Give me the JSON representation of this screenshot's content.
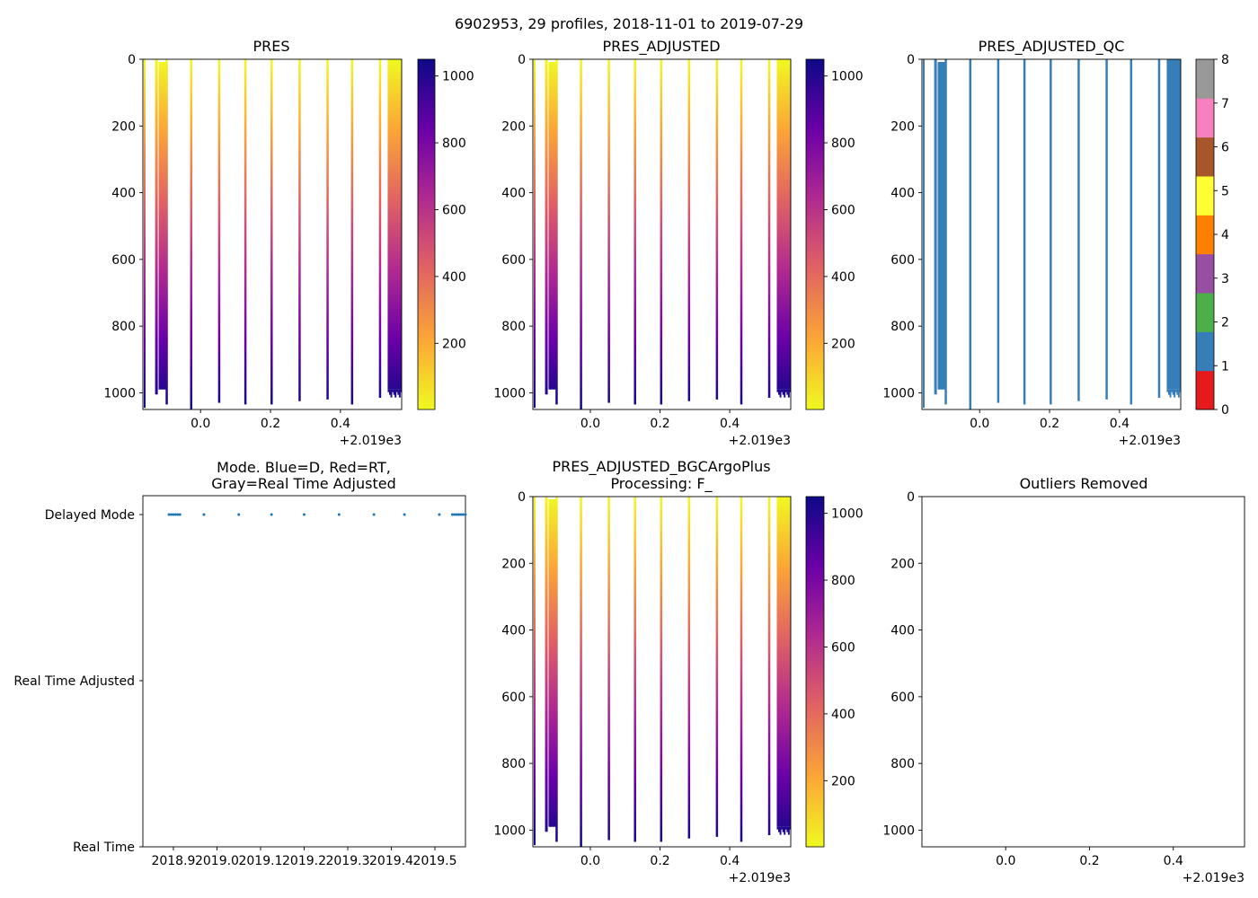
{
  "suptitle": "6902953, 29 profiles, 2018-11-01 to 2019-07-29",
  "chart_data": [
    {
      "type": "heatmap",
      "title": "PRES",
      "ylim": [
        1050,
        0
      ],
      "yticks": [
        "0",
        "200",
        "400",
        "600",
        "800",
        "1000"
      ],
      "xticks": [
        "0.0",
        "0.2",
        "0.4"
      ],
      "x_offset": "+2.019e3",
      "colormap": "plasma_r",
      "colorbar_ticks": [
        "200",
        "400",
        "600",
        "800",
        "1000"
      ],
      "profiles_x": [
        -0.13,
        -0.12,
        -0.115,
        -0.11,
        -0.105,
        -0.1,
        -0.03,
        0.05,
        0.125,
        0.2,
        0.28,
        0.36,
        0.43,
        0.51
      ],
      "profiles_max_pres": [
        1005,
        990,
        990,
        990,
        990,
        1035,
        1050,
        1030,
        1035,
        1035,
        1025,
        1020,
        1035,
        1015
      ]
    },
    {
      "type": "heatmap",
      "title": "PRES_ADJUSTED",
      "ylim": [
        1050,
        0
      ],
      "yticks": [
        "0",
        "200",
        "400",
        "600",
        "800",
        "1000"
      ],
      "xticks": [
        "0.0",
        "0.2",
        "0.4"
      ],
      "x_offset": "+2.019e3",
      "colormap": "plasma_r",
      "colorbar_ticks": [
        "200",
        "400",
        "600",
        "800",
        "1000"
      ]
    },
    {
      "type": "heatmap",
      "title": "PRES_ADJUSTED_QC",
      "ylim": [
        1050,
        0
      ],
      "yticks": [
        "0",
        "200",
        "400",
        "600",
        "800",
        "1000"
      ],
      "xticks": [
        "0.0",
        "0.2",
        "0.4"
      ],
      "x_offset": "+2.019e3",
      "qc_value": 1,
      "colorbar_ticks": [
        "0",
        "1",
        "2",
        "3",
        "4",
        "5",
        "6",
        "7",
        "8"
      ],
      "qc_colors": [
        "#e41a1c",
        "#377eb8",
        "#4daf4a",
        "#984ea3",
        "#ff7f00",
        "#ffff33",
        "#a65628",
        "#f781bf",
        "#999999"
      ]
    },
    {
      "type": "scatter",
      "title": "Mode. Blue=D, Red=RT,\nGray=Real Time Adjusted",
      "ytick_labels": [
        "Delayed Mode",
        "Real Time Adjusted",
        "Real Time"
      ],
      "xticks": [
        "2018.9",
        "2019.0",
        "2019.1",
        "2019.2",
        "2019.3",
        "2019.4",
        "2019.5"
      ],
      "xlim": [
        2018.83,
        2019.57
      ],
      "points_x": [
        2018.89,
        2018.895,
        2018.9,
        2018.905,
        2018.91,
        2018.915,
        2018.97,
        2019.05,
        2019.125,
        2019.2,
        2019.28,
        2019.36,
        2019.43,
        2019.51,
        2019.54,
        2019.545,
        2019.55,
        2019.555,
        2019.56,
        2019.565,
        2019.57
      ],
      "points_mode": "Delayed Mode",
      "point_color": "#1f77b4"
    },
    {
      "type": "heatmap",
      "title": "PRES_ADJUSTED_BGCArgoPlus\nProcessing: F_",
      "ylim": [
        1050,
        0
      ],
      "yticks": [
        "0",
        "200",
        "400",
        "600",
        "800",
        "1000"
      ],
      "xticks": [
        "0.0",
        "0.2",
        "0.4"
      ],
      "x_offset": "+2.019e3",
      "colormap": "plasma_r",
      "colorbar_ticks": [
        "200",
        "400",
        "600",
        "800",
        "1000"
      ]
    },
    {
      "type": "scatter",
      "title": "Outliers Removed",
      "ylim": [
        1050,
        0
      ],
      "yticks": [
        "0",
        "200",
        "400",
        "600",
        "800",
        "1000"
      ],
      "xticks": [
        "0.0",
        "0.2",
        "0.4"
      ],
      "x_offset": "+2.019e3",
      "points": []
    }
  ]
}
